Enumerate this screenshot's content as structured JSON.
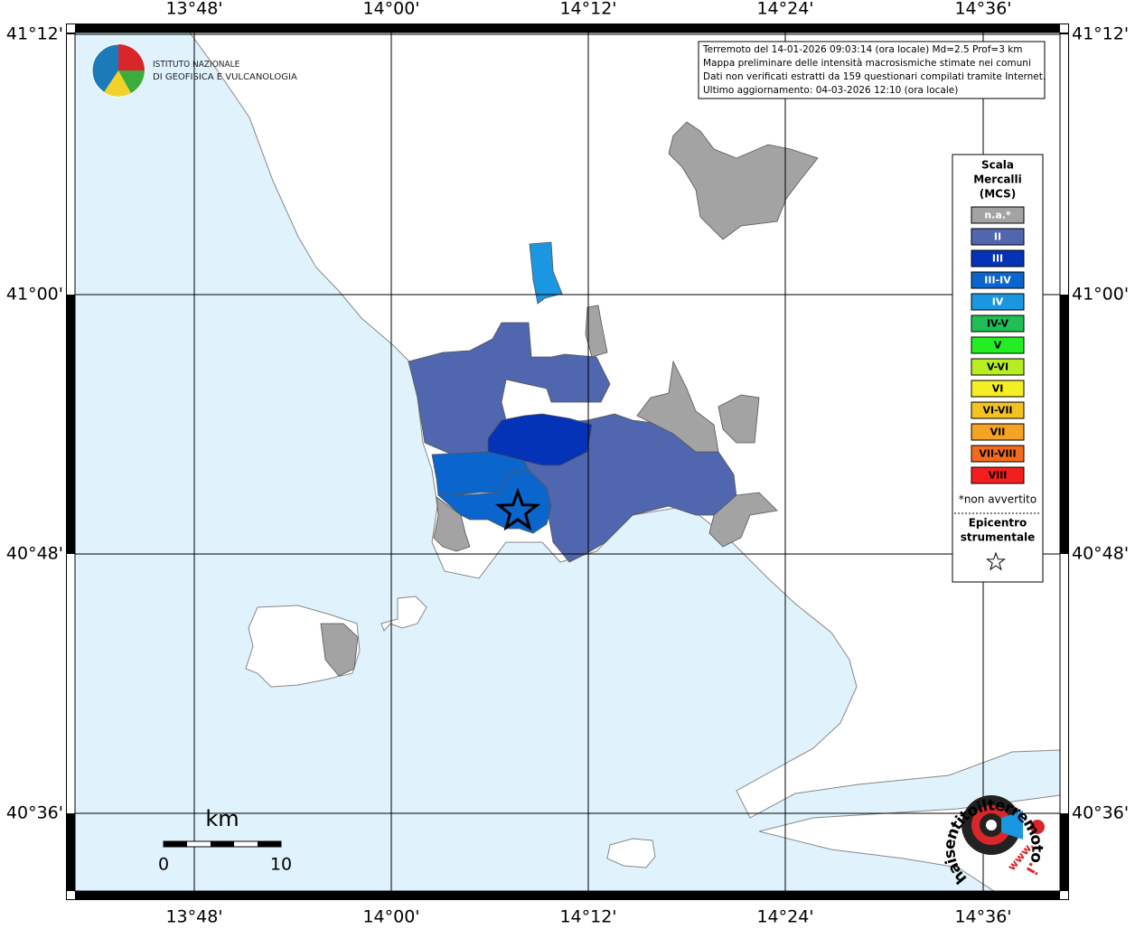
{
  "map": {
    "lon_labels": [
      "13°48'",
      "14°00'",
      "14°12'",
      "14°24'",
      "14°36'"
    ],
    "lat_labels": [
      "41°12'",
      "41°00'",
      "40°48'",
      "40°36'"
    ],
    "info": [
      "Terremoto del 14-01-2026 09:03:14 (ora locale) Md=2.5 Prof=3 km",
      "Mappa preliminare delle intensità macrosismiche stimate nei comuni",
      "Dati non verificati estratti da 159 questionari compilati tramite Internet.",
      "Ultimo aggiornamento: 04-03-2026 12:10 (ora locale)"
    ],
    "institute": [
      "ISTITUTO NAZIONALE",
      "DI GEOFISICA E VULCANOLOGIA"
    ],
    "legend": {
      "title": [
        "Scala",
        "Mercalli",
        "(MCS)"
      ],
      "items": [
        {
          "label": "n.a.*",
          "color": "#a3a3a3",
          "text_color": "#ffffff"
        },
        {
          "label": "II",
          "color": "#5066ae",
          "text_color": "#ffffff"
        },
        {
          "label": "III",
          "color": "#0433b8",
          "text_color": "#ffffff"
        },
        {
          "label": "III-IV",
          "color": "#0a66cc",
          "text_color": "#ffffff"
        },
        {
          "label": "IV",
          "color": "#1b96e0",
          "text_color": "#ffffff"
        },
        {
          "label": "IV-V",
          "color": "#1fbf55",
          "text_color": "#000000"
        },
        {
          "label": "V",
          "color": "#22ee22",
          "text_color": "#000000"
        },
        {
          "label": "V-VI",
          "color": "#b6ee22",
          "text_color": "#000000"
        },
        {
          "label": "VI",
          "color": "#f4ee22",
          "text_color": "#000000"
        },
        {
          "label": "VI-VII",
          "color": "#f4c322",
          "text_color": "#000000"
        },
        {
          "label": "VII",
          "color": "#f4a322",
          "text_color": "#000000"
        },
        {
          "label": "VII-VIII",
          "color": "#f46b1e",
          "text_color": "#000000"
        },
        {
          "label": "VIII",
          "color": "#f41e1e",
          "text_color": "#000000"
        }
      ],
      "note": "*non avvertito",
      "epicenter": [
        "Epicentro",
        "strumentale"
      ]
    },
    "scale": {
      "unit": "km",
      "labels": [
        "0",
        "10"
      ]
    },
    "site_logo": {
      "text": "haisentitoilterremoto",
      "domain": ".it",
      "www": "www."
    }
  }
}
